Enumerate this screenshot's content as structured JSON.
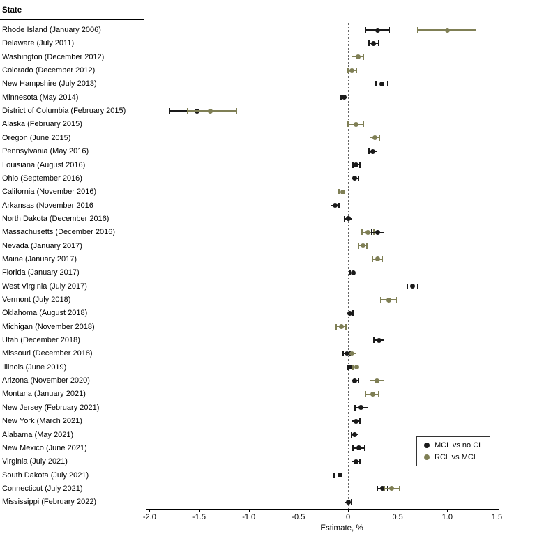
{
  "header": {
    "state_label": "State"
  },
  "chart_data": {
    "type": "scatter",
    "subtype": "forest-plot",
    "title": "",
    "xlabel": "Estimate, %",
    "xlim": [
      -2.25,
      1.6
    ],
    "reference_line": 0,
    "grid": false,
    "legend_position": "bottom-right",
    "x_ticks": [
      {
        "value": -2.0,
        "label": "-2.0"
      },
      {
        "value": -1.5,
        "label": "-1.5"
      },
      {
        "value": -1.0,
        "label": "-1.0"
      },
      {
        "value": -0.5,
        "label": "-0.5"
      },
      {
        "value": 0,
        "label": "0"
      },
      {
        "value": 0.5,
        "label": "0.5"
      },
      {
        "value": 1.0,
        "label": "1.0"
      },
      {
        "value": 1.5,
        "label": "1.5"
      }
    ],
    "series": [
      {
        "id": "mcl",
        "name": "MCL vs no CL",
        "color": "#1a1a1a"
      },
      {
        "id": "rcl",
        "name": "RCL vs MCL",
        "color": "#7f7f55"
      }
    ],
    "rows": [
      {
        "label": "Rhode Island (January 2006)",
        "points": [
          {
            "series": "mcl",
            "est": 0.3,
            "lo": 0.18,
            "hi": 0.42
          },
          {
            "series": "rcl",
            "est": 1.0,
            "lo": 0.7,
            "hi": 1.29
          }
        ]
      },
      {
        "label": "Delaware (July 2011)",
        "points": [
          {
            "series": "mcl",
            "est": 0.26,
            "lo": 0.21,
            "hi": 0.31
          }
        ]
      },
      {
        "label": "Washington (December 2012)",
        "points": [
          {
            "series": "rcl",
            "est": 0.1,
            "lo": 0.04,
            "hi": 0.16
          }
        ]
      },
      {
        "label": "Colorado (December 2012)",
        "points": [
          {
            "series": "rcl",
            "est": 0.04,
            "lo": 0.0,
            "hi": 0.09
          }
        ]
      },
      {
        "label": "New Hampshire (July 2013)",
        "points": [
          {
            "series": "mcl",
            "est": 0.34,
            "lo": 0.28,
            "hi": 0.4
          }
        ]
      },
      {
        "label": "Minnesota (May 2014)",
        "points": [
          {
            "series": "mcl",
            "est": -0.04,
            "lo": -0.07,
            "hi": -0.01
          }
        ]
      },
      {
        "label": "District of Columbia (February 2015)",
        "points": [
          {
            "series": "mcl",
            "est": -1.52,
            "lo": -1.8,
            "hi": -1.24
          },
          {
            "series": "rcl",
            "est": -1.39,
            "lo": -1.62,
            "hi": -1.12
          }
        ]
      },
      {
        "label": "Alaska (February 2015)",
        "points": [
          {
            "series": "rcl",
            "est": 0.08,
            "lo": 0.0,
            "hi": 0.16
          }
        ]
      },
      {
        "label": "Oregon (June 2015)",
        "points": [
          {
            "series": "rcl",
            "est": 0.27,
            "lo": 0.22,
            "hi": 0.32
          }
        ]
      },
      {
        "label": "Pennsylvania (May 2016)",
        "points": [
          {
            "series": "mcl",
            "est": 0.25,
            "lo": 0.21,
            "hi": 0.29
          }
        ]
      },
      {
        "label": "Louisiana (August 2016)",
        "points": [
          {
            "series": "mcl",
            "est": 0.08,
            "lo": 0.05,
            "hi": 0.12
          }
        ]
      },
      {
        "label": "Ohio (September 2016)",
        "points": [
          {
            "series": "mcl",
            "est": 0.07,
            "lo": 0.04,
            "hi": 0.11
          }
        ]
      },
      {
        "label": "California (November 2016)",
        "points": [
          {
            "series": "rcl",
            "est": -0.05,
            "lo": -0.09,
            "hi": -0.01
          }
        ]
      },
      {
        "label": "Arkansas (November 2016",
        "points": [
          {
            "series": "mcl",
            "est": -0.13,
            "lo": -0.17,
            "hi": -0.09
          }
        ]
      },
      {
        "label": "North Dakota (December 2016)",
        "points": [
          {
            "series": "mcl",
            "est": 0.0,
            "lo": -0.04,
            "hi": 0.04
          }
        ]
      },
      {
        "label": "Massachusetts (December 2016)",
        "points": [
          {
            "series": "rcl",
            "est": 0.2,
            "lo": 0.14,
            "hi": 0.26
          },
          {
            "series": "mcl",
            "est": 0.3,
            "lo": 0.24,
            "hi": 0.36
          }
        ]
      },
      {
        "label": "Nevada (January 2017)",
        "points": [
          {
            "series": "rcl",
            "est": 0.15,
            "lo": 0.11,
            "hi": 0.19
          }
        ]
      },
      {
        "label": "Maine (January 2017)",
        "points": [
          {
            "series": "rcl",
            "est": 0.3,
            "lo": 0.25,
            "hi": 0.35
          }
        ]
      },
      {
        "label": "Florida (January 2017)",
        "points": [
          {
            "series": "mcl",
            "est": 0.05,
            "lo": 0.02,
            "hi": 0.08
          }
        ]
      },
      {
        "label": "West Virginia (July 2017)",
        "points": [
          {
            "series": "mcl",
            "est": 0.65,
            "lo": 0.6,
            "hi": 0.7
          }
        ]
      },
      {
        "label": "Vermont (July 2018)",
        "points": [
          {
            "series": "rcl",
            "est": 0.41,
            "lo": 0.33,
            "hi": 0.49
          }
        ]
      },
      {
        "label": "Oklahoma (August 2018)",
        "points": [
          {
            "series": "mcl",
            "est": 0.02,
            "lo": -0.01,
            "hi": 0.05
          }
        ]
      },
      {
        "label": "Michigan (November 2018)",
        "points": [
          {
            "series": "rcl",
            "est": -0.07,
            "lo": -0.12,
            "hi": -0.02
          }
        ]
      },
      {
        "label": "Utah (December 2018)",
        "points": [
          {
            "series": "mcl",
            "est": 0.31,
            "lo": 0.26,
            "hi": 0.36
          }
        ]
      },
      {
        "label": "Missouri (December 2018)",
        "points": [
          {
            "series": "mcl",
            "est": -0.01,
            "lo": -0.05,
            "hi": 0.02
          },
          {
            "series": "rcl",
            "est": 0.04,
            "lo": 0.01,
            "hi": 0.08
          }
        ]
      },
      {
        "label": "Illinois (June 2019)",
        "points": [
          {
            "series": "mcl",
            "est": 0.03,
            "lo": 0.0,
            "hi": 0.06
          },
          {
            "series": "rcl",
            "est": 0.09,
            "lo": 0.05,
            "hi": 0.13
          }
        ]
      },
      {
        "label": "Arizona (November 2020)",
        "points": [
          {
            "series": "mcl",
            "est": 0.07,
            "lo": 0.04,
            "hi": 0.11
          },
          {
            "series": "rcl",
            "est": 0.29,
            "lo": 0.22,
            "hi": 0.36
          }
        ]
      },
      {
        "label": "Montana (January 2021)",
        "points": [
          {
            "series": "rcl",
            "est": 0.25,
            "lo": 0.18,
            "hi": 0.31
          }
        ]
      },
      {
        "label": "New Jersey (February 2021)",
        "points": [
          {
            "series": "mcl",
            "est": 0.13,
            "lo": 0.07,
            "hi": 0.2
          }
        ]
      },
      {
        "label": "New York (March 2021)",
        "points": [
          {
            "series": "mcl",
            "est": 0.08,
            "lo": 0.04,
            "hi": 0.12
          }
        ]
      },
      {
        "label": "Alabama (May 2021)",
        "points": [
          {
            "series": "mcl",
            "est": 0.07,
            "lo": 0.03,
            "hi": 0.1
          }
        ]
      },
      {
        "label": "New Mexico (June 2021)",
        "points": [
          {
            "series": "mcl",
            "est": 0.11,
            "lo": 0.05,
            "hi": 0.17
          }
        ]
      },
      {
        "label": "Virginia (July 2021)",
        "points": [
          {
            "series": "mcl",
            "est": 0.08,
            "lo": 0.04,
            "hi": 0.12
          }
        ]
      },
      {
        "label": "South Dakota (July 2021)",
        "points": [
          {
            "series": "mcl",
            "est": -0.08,
            "lo": -0.14,
            "hi": -0.03
          }
        ]
      },
      {
        "label": "Connecticut (July 2021)",
        "points": [
          {
            "series": "mcl",
            "est": 0.35,
            "lo": 0.3,
            "hi": 0.4
          },
          {
            "series": "rcl",
            "est": 0.44,
            "lo": 0.37,
            "hi": 0.52
          }
        ]
      },
      {
        "label": "Mississippi (February 2022)",
        "points": [
          {
            "series": "mcl",
            "est": 0.0,
            "lo": -0.03,
            "hi": 0.03
          }
        ]
      }
    ]
  }
}
